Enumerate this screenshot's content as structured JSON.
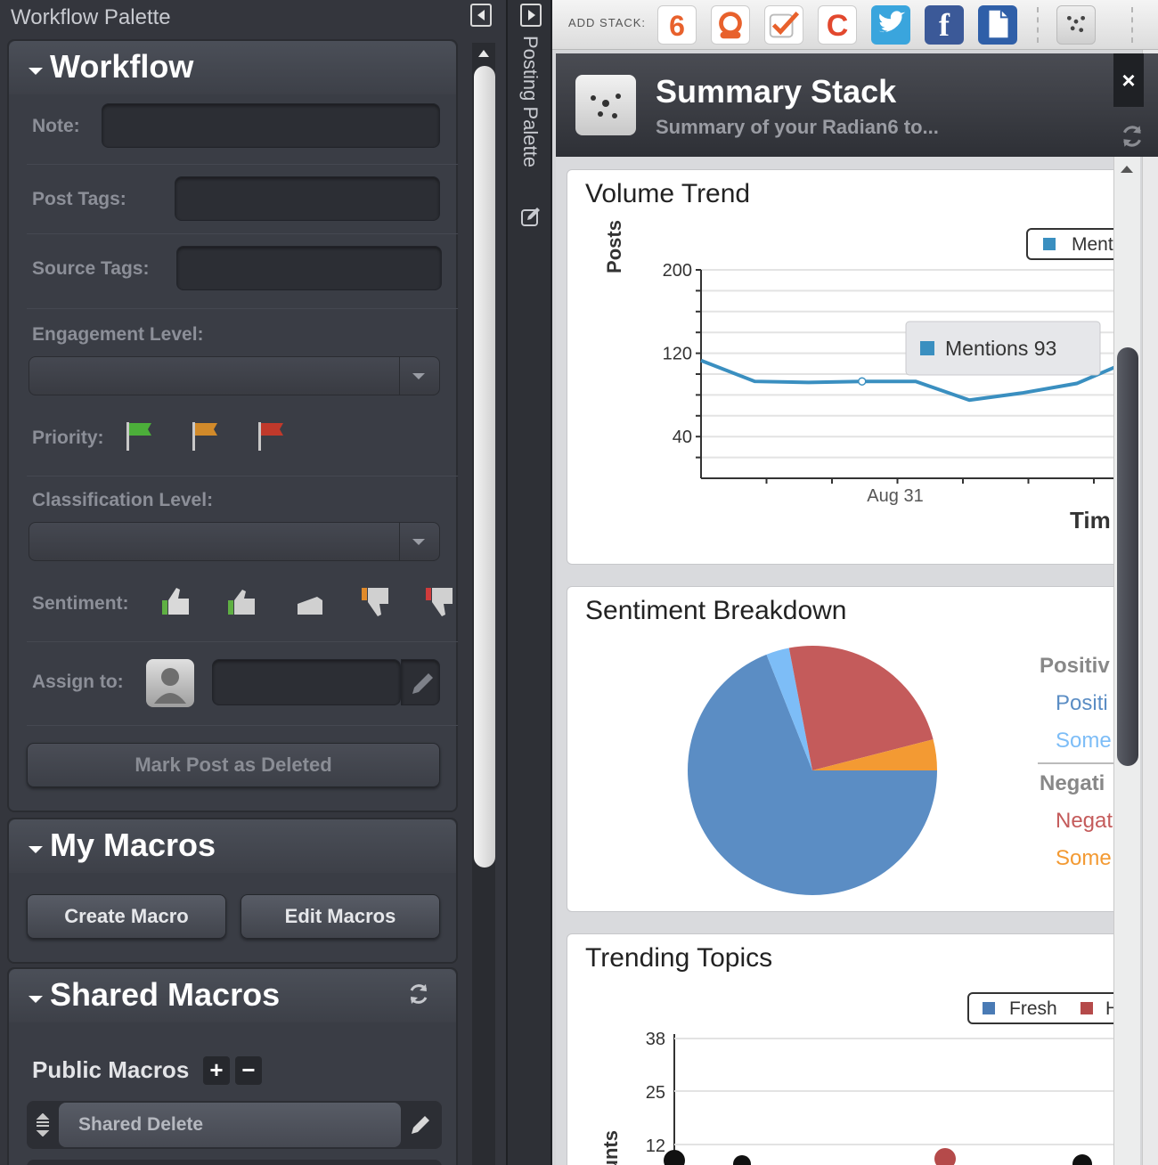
{
  "left_palette": {
    "title": "Workflow Palette",
    "workflow": {
      "header": "Workflow",
      "note_label": "Note:",
      "note_value": "",
      "post_tags_label": "Post Tags:",
      "post_tags_value": "",
      "source_tags_label": "Source Tags:",
      "source_tags_value": "",
      "engagement_label": "Engagement Level:",
      "engagement_value": "",
      "priority_label": "Priority:",
      "classification_label": "Classification Level:",
      "classification_value": "",
      "sentiment_label": "Sentiment:",
      "assign_label": "Assign to:",
      "assign_value": "",
      "mark_deleted": "Mark Post as Deleted"
    },
    "my_macros": {
      "header": "My Macros",
      "create": "Create Macro",
      "edit": "Edit Macros"
    },
    "shared_macros": {
      "header": "Shared Macros",
      "public_label": "Public Macros",
      "plus": "+",
      "minus": "−",
      "items": [
        "Shared Delete"
      ]
    }
  },
  "mid_strip": {
    "label": "Posting Palette"
  },
  "add_stack": {
    "label": "ADD STACK:",
    "icons": [
      "radian6-icon",
      "support-icon",
      "check-icon",
      "c-icon",
      "twitter-icon",
      "facebook-icon",
      "document-icon",
      "dots-icon"
    ]
  },
  "stack": {
    "title": "Summary Stack",
    "subtitle": "Summary of your Radian6 to...",
    "close": "×"
  },
  "colors": {
    "line": "#3a8fc0",
    "pie_positive": "#5b8dc4",
    "pie_somewhat_positive": "#7dbdf7",
    "pie_negative": "#c45b5b",
    "pie_somewhat_negative": "#f39a33",
    "fresh": "#4a7bb5",
    "hot": "#b54a4a"
  },
  "volume_trend": {
    "title": "Volume Trend",
    "legend": "Ment",
    "tooltip": "Mentions 93",
    "ylabel": "Posts",
    "xlabel": "Tim",
    "y_ticks": [
      "200",
      "120",
      "40"
    ],
    "x_tick": "Aug 31"
  },
  "sentiment": {
    "title": "Sentiment Breakdown",
    "legend_positive_header": "Positiv",
    "legend_positive": "Positi",
    "legend_some_pos": "Some",
    "legend_negative_header": "Negati",
    "legend_negative": "Negat",
    "legend_some_neg": "Some"
  },
  "trending": {
    "title": "Trending Topics",
    "legend_fresh": "Fresh",
    "legend_hot": "H",
    "ylabel": "ounts",
    "y_ticks": [
      "38",
      "25",
      "12"
    ]
  },
  "chart_data": [
    {
      "type": "line",
      "title": "Volume Trend",
      "ylabel": "Posts",
      "xlabel": "Tim",
      "ylim": [
        0,
        200
      ],
      "x_tick_labels": [
        "Aug 31"
      ],
      "series": [
        {
          "name": "Ment",
          "values": [
            113,
            93,
            92,
            93,
            93,
            75,
            82,
            91,
            113
          ]
        }
      ]
    },
    {
      "type": "pie",
      "title": "Sentiment Breakdown",
      "categories": [
        "Positi",
        "Some (positive)",
        "Negat",
        "Some (negative)"
      ],
      "values": [
        69,
        3,
        24,
        4
      ]
    },
    {
      "type": "scatter",
      "title": "Trending Topics",
      "ylabel": "ounts",
      "y_ticks": [
        12,
        25,
        38
      ],
      "series": [
        {
          "name": "Fresh",
          "values": []
        },
        {
          "name": "H",
          "values": []
        }
      ]
    }
  ]
}
